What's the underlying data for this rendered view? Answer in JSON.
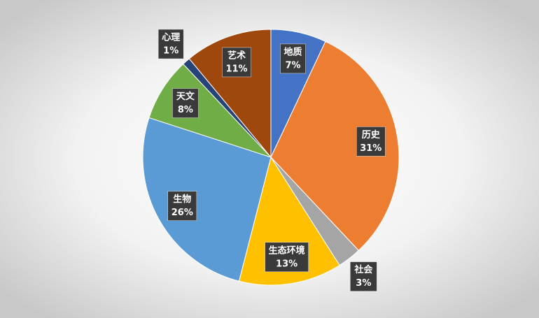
{
  "chart_data": {
    "type": "pie",
    "categories": [
      "地质",
      "历史",
      "社会",
      "生态环境",
      "生物",
      "天文",
      "心理",
      "艺术"
    ],
    "values": [
      7,
      31,
      3,
      13,
      26,
      8,
      1,
      11
    ],
    "value_labels": [
      "7%",
      "31%",
      "3%",
      "13%",
      "26%",
      "8%",
      "1%",
      "11%"
    ],
    "colors": [
      "#4472c4",
      "#ed7d31",
      "#a5a5a5",
      "#ffc000",
      "#5b9bd5",
      "#70ad47",
      "#264478",
      "#9e480e"
    ]
  }
}
